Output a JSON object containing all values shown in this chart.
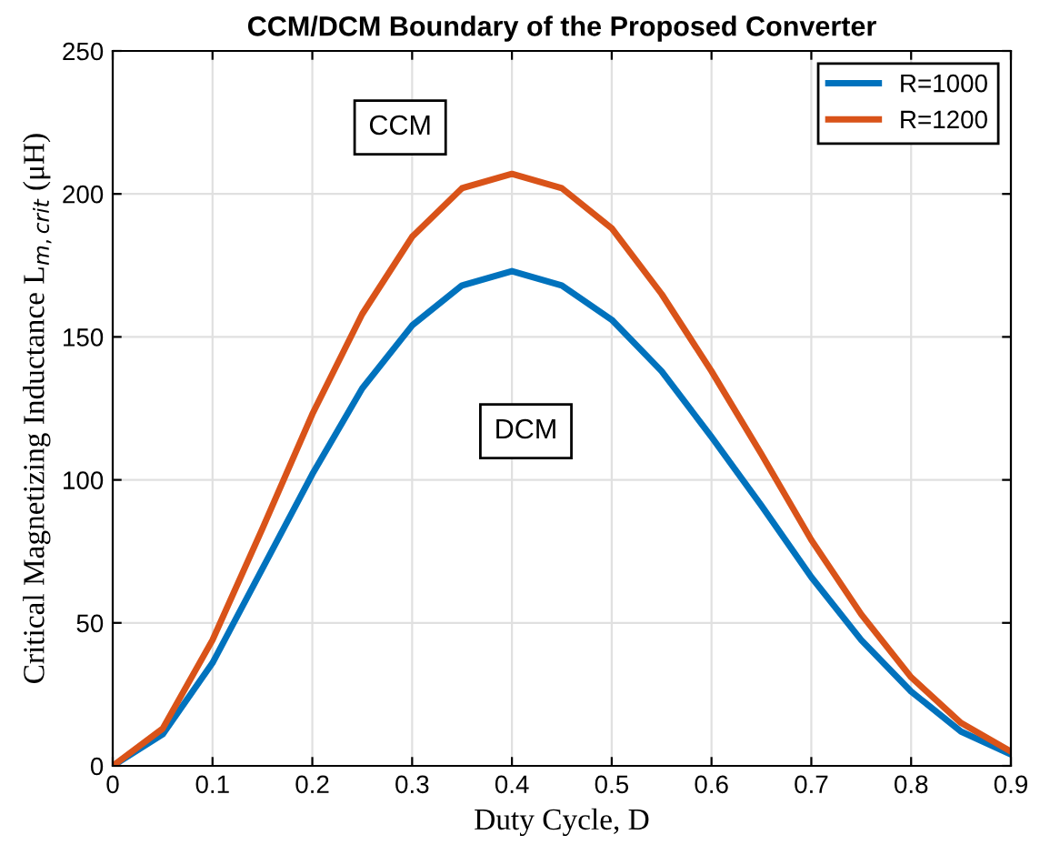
{
  "chart_data": {
    "type": "line",
    "title": "CCM/DCM Boundary of the Proposed Converter",
    "xlabel": "Duty Cycle, D",
    "ylabel": "Critical Magnetizing Inductance L$_{m,crit}$ (μH)",
    "x": [
      0,
      0.05,
      0.1,
      0.15,
      0.2,
      0.25,
      0.3,
      0.35,
      0.4,
      0.45,
      0.5,
      0.55,
      0.6,
      0.65,
      0.7,
      0.75,
      0.8,
      0.85,
      0.9
    ],
    "series": [
      {
        "name": "R=1000",
        "color": "#0072bd",
        "values": [
          0,
          11,
          36,
          69,
          102,
          132,
          154,
          168,
          173,
          168,
          156,
          138,
          115,
          91,
          66,
          44,
          26,
          12,
          4
        ]
      },
      {
        "name": "R=1200",
        "color": "#d95319",
        "values": [
          0,
          13,
          44,
          83,
          123,
          158,
          185,
          202,
          207,
          202,
          188,
          165,
          138,
          109,
          79,
          53,
          31,
          15,
          5
        ]
      }
    ],
    "xlim": [
      0,
      0.9
    ],
    "xticks": [
      0,
      0.1,
      0.2,
      0.3,
      0.4,
      0.5,
      0.6,
      0.7,
      0.8,
      0.9
    ],
    "ylim": [
      0,
      250
    ],
    "yticks": [
      0,
      50,
      100,
      150,
      200,
      250
    ],
    "annotations": [
      "CCM",
      "DCM"
    ],
    "grid": true,
    "legend": "top right",
    "marker": "none",
    "line_style": "solid"
  }
}
